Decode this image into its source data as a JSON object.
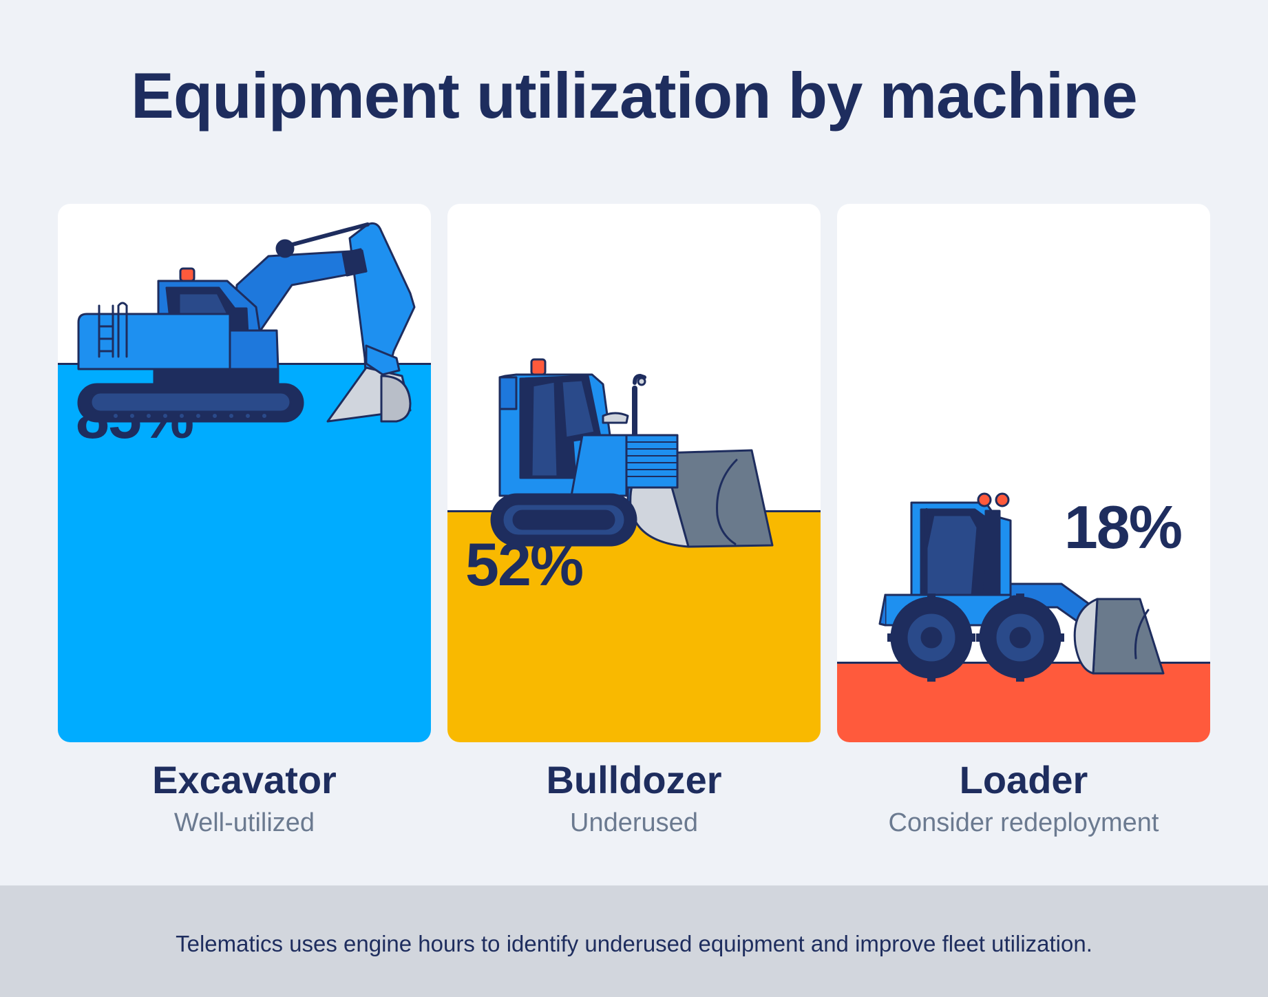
{
  "title": "Equipment utilization by machine",
  "chart_data": {
    "type": "bar",
    "title": "Equipment utilization by machine",
    "categories": [
      "Excavator",
      "Bulldozer",
      "Loader"
    ],
    "values": [
      85,
      52,
      18
    ],
    "value_labels": [
      "85%",
      "52%",
      "18%"
    ],
    "status_labels": [
      "Well-utilized",
      "Underused",
      "Consider redeployment"
    ],
    "unit": "%",
    "ylim": [
      0,
      100
    ],
    "colors": [
      "#00acff",
      "#f9b900",
      "#ff5a3c"
    ],
    "icons": [
      "excavator-icon",
      "bulldozer-icon",
      "loader-icon"
    ]
  },
  "footer": {
    "text": "Telematics uses engine hours to identify underused equipment and improve fleet utilization."
  },
  "colors": {
    "background": "#eff2f7",
    "text_dark": "#1e2d5e",
    "text_muted": "#6b7a90",
    "footer_bg": "#d2d6dd"
  }
}
